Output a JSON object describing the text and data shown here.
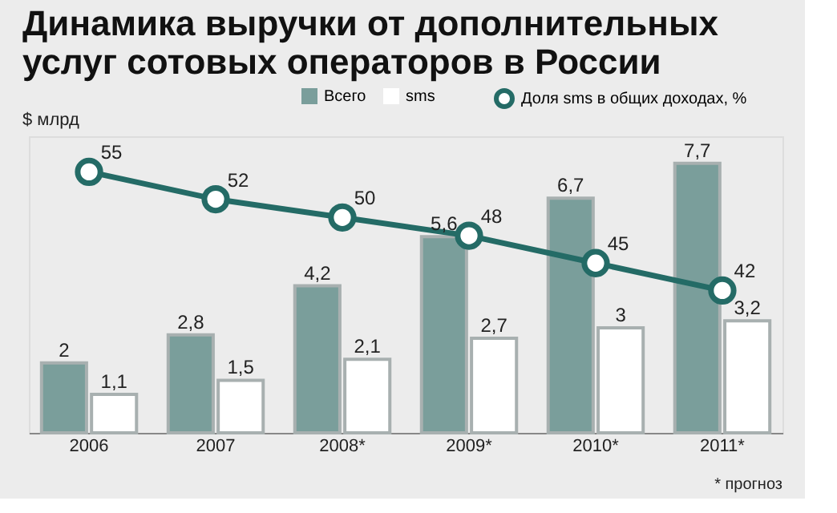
{
  "chart_data": {
    "type": "bar",
    "title": [
      "Динамика выручки от дополнительных",
      "услуг сотовых операторов в России"
    ],
    "ylabel": "$ млрд",
    "categories": [
      "2006",
      "2007",
      "2008*",
      "2009*",
      "2010*",
      "2011*"
    ],
    "series": [
      {
        "name": "Всего",
        "color": "#7a9e9b",
        "values": [
          2,
          2.8,
          4.2,
          5.6,
          6.7,
          7.7
        ],
        "value_labels": [
          "2",
          "2,8",
          "4,2",
          "5,6",
          "6,7",
          "7,7"
        ]
      },
      {
        "name": "sms",
        "color": "#ffffff",
        "values": [
          1.1,
          1.5,
          2.1,
          2.7,
          3,
          3.2
        ],
        "value_labels": [
          "1,1",
          "1,5",
          "2,1",
          "2,7",
          "3",
          "3,2"
        ]
      },
      {
        "name": "Доля sms в общих доходах, %",
        "type": "line",
        "axis": "y2",
        "color": "#246b66",
        "values": [
          55,
          52,
          50,
          48,
          45,
          42
        ],
        "value_labels": [
          "55",
          "52",
          "50",
          "48",
          "45",
          "42"
        ]
      }
    ],
    "marker": "circle",
    "line_style": "solid",
    "legend": "top right",
    "annotations": [
      "* прогноз"
    ]
  }
}
